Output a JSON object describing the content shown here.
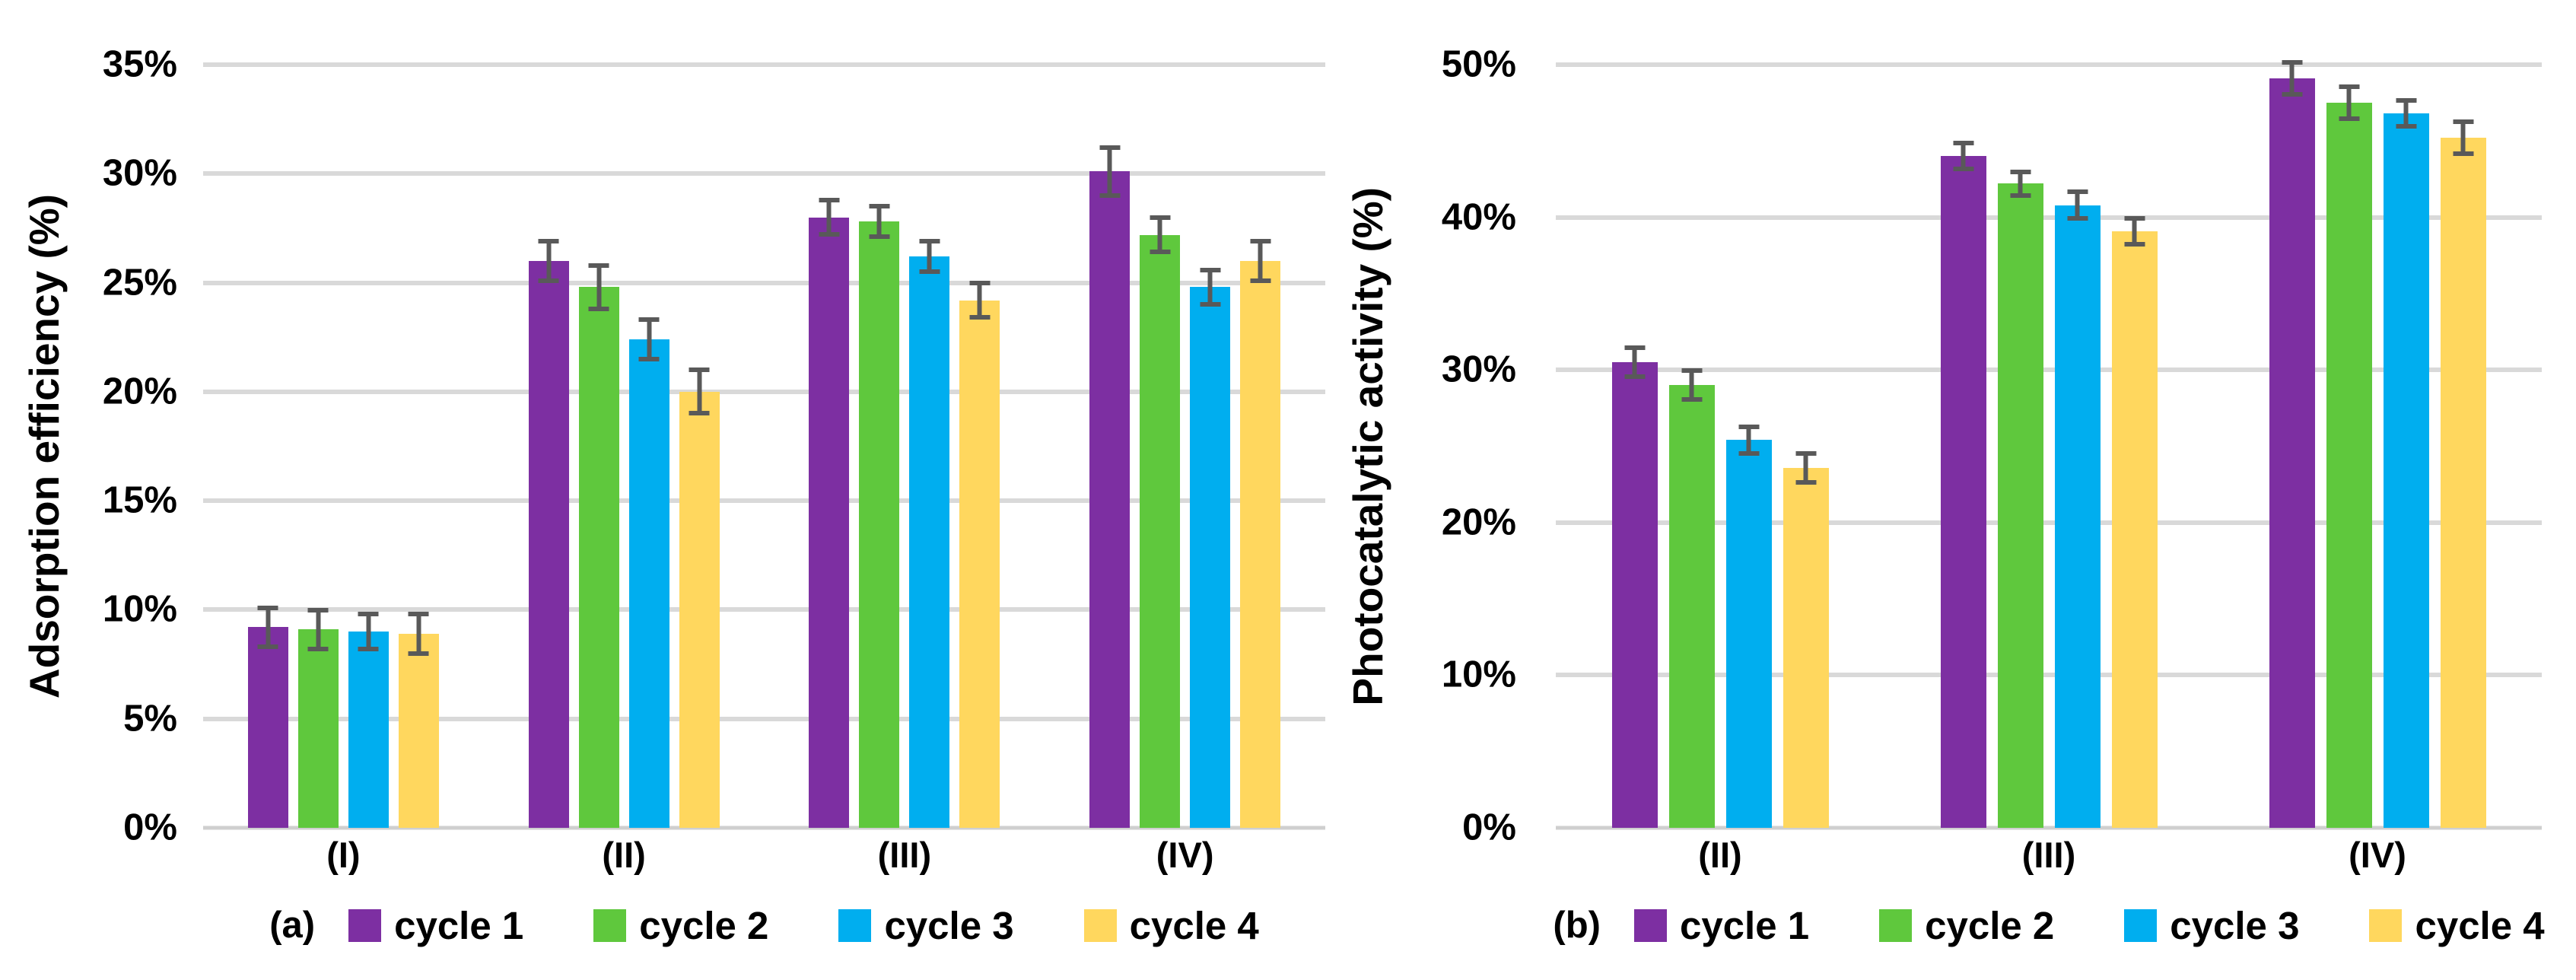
{
  "figure": {
    "background": "#FFFFFF"
  },
  "palette": {
    "cycle_1": "#7D2FA2",
    "cycle_2": "#5FC83D",
    "cycle_3": "#00AEEF",
    "cycle_4": "#FFD75E",
    "gridline": "#D9D9D9",
    "axis_line": "#CFCFCF",
    "error_bar": "#595959",
    "text": "#000000"
  },
  "chart_data": [
    {
      "type": "bar",
      "panel_label": "(a)",
      "title": "",
      "xlabel": "",
      "ylabel": "Adsorption efficiency  (%)",
      "ylim": [
        0,
        35
      ],
      "ytick_step": 5,
      "ytick_labels": [
        "35%",
        "30%",
        "25%",
        "20%",
        "15%",
        "10%",
        "5%",
        "0%"
      ],
      "grid": true,
      "legend_position": "bottom",
      "categories": [
        "(I)",
        "(II)",
        "(III)",
        "(IV)"
      ],
      "series": [
        {
          "name": "cycle 1",
          "color": "#7D2FA2",
          "values": [
            9.2,
            26.0,
            28.0,
            30.1
          ],
          "errors": [
            1.0,
            1.0,
            0.9,
            1.2
          ]
        },
        {
          "name": "cycle 2",
          "color": "#5FC83D",
          "values": [
            9.1,
            24.8,
            27.8,
            27.2
          ],
          "errors": [
            1.0,
            1.1,
            0.8,
            0.9
          ]
        },
        {
          "name": "cycle 3",
          "color": "#00AEEF",
          "values": [
            9.0,
            22.4,
            26.2,
            24.8
          ],
          "errors": [
            0.9,
            1.0,
            0.8,
            0.9
          ]
        },
        {
          "name": "cycle 4",
          "color": "#FFD75E",
          "values": [
            8.9,
            20.0,
            24.2,
            26.0
          ],
          "errors": [
            1.0,
            1.1,
            0.9,
            1.0
          ]
        }
      ]
    },
    {
      "type": "bar",
      "panel_label": "(b)",
      "title": "",
      "xlabel": "",
      "ylabel": "Photocatalytic activity  (%)",
      "ylim": [
        0,
        50
      ],
      "ytick_step": 10,
      "ytick_labels": [
        "50%",
        "40%",
        "30%",
        "20%",
        "10%",
        "0%"
      ],
      "grid": true,
      "legend_position": "bottom",
      "categories": [
        "(II)",
        "(III)",
        "(IV)"
      ],
      "series": [
        {
          "name": "cycle 1",
          "color": "#7D2FA2",
          "values": [
            30.5,
            44.0,
            49.1
          ],
          "errors": [
            1.1,
            1.0,
            1.2
          ]
        },
        {
          "name": "cycle 2",
          "color": "#5FC83D",
          "values": [
            29.0,
            42.2,
            47.5
          ],
          "errors": [
            1.1,
            0.9,
            1.2
          ]
        },
        {
          "name": "cycle 3",
          "color": "#00AEEF",
          "values": [
            25.4,
            40.8,
            46.8
          ],
          "errors": [
            1.0,
            1.0,
            1.0
          ]
        },
        {
          "name": "cycle 4",
          "color": "#FFD75E",
          "values": [
            23.6,
            39.1,
            45.2
          ],
          "errors": [
            1.1,
            1.0,
            1.2
          ]
        }
      ]
    }
  ]
}
